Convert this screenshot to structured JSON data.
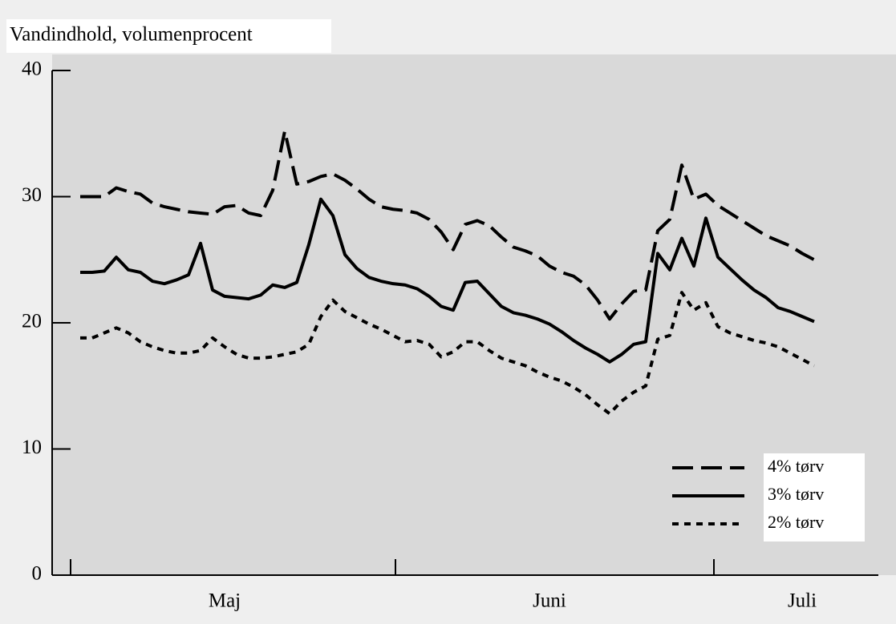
{
  "chart_data": {
    "type": "line",
    "title": "Vandindhold, volumenprocent",
    "categories": [
      null,
      null,
      null,
      null,
      null,
      null,
      null,
      null,
      null,
      null,
      null,
      null,
      "Maj",
      null,
      null,
      null,
      null,
      null,
      null,
      null,
      null,
      null,
      null,
      null,
      null,
      null,
      null,
      null,
      null,
      null,
      null,
      null,
      null,
      null,
      null,
      null,
      null,
      null,
      null,
      "Juni",
      null,
      null,
      null,
      null,
      null,
      null,
      null,
      null,
      null,
      null,
      null,
      null,
      null,
      null,
      null,
      null,
      null,
      null,
      null,
      null,
      "Juli",
      null
    ],
    "ylim": [
      0,
      40
    ],
    "yticks": [
      0,
      10,
      20,
      30,
      40
    ],
    "series": [
      {
        "name": "4% tørv",
        "color": "#000000",
        "line_style": "dashed",
        "values": [
          30,
          30,
          30,
          30.7,
          30.4,
          30.2,
          29.5,
          29.2,
          29,
          28.8,
          28.7,
          28.6,
          29.2,
          29.3,
          28.7,
          28.5,
          30.5,
          35.2,
          31,
          31.2,
          31.6,
          31.8,
          31.3,
          30.6,
          29.8,
          29.2,
          29,
          28.9,
          28.7,
          28.2,
          27.2,
          25.8,
          27.8,
          28.1,
          27.7,
          26.8,
          26,
          25.7,
          25.3,
          24.5,
          24,
          23.7,
          23,
          21.8,
          20.3,
          21.5,
          22.5,
          22.6,
          27.3,
          28.2,
          32.5,
          29.8,
          30.2,
          29.3,
          28.7,
          28.1,
          27.5,
          26.9,
          26.5,
          26.1,
          25.5,
          25
        ]
      },
      {
        "name": "3% tørv",
        "color": "#000000",
        "line_style": "solid",
        "values": [
          24,
          24,
          24.1,
          25.2,
          24.2,
          24,
          23.3,
          23.1,
          23.4,
          23.8,
          26.3,
          22.6,
          22.1,
          22,
          21.9,
          22.2,
          23,
          22.8,
          23.2,
          26.2,
          29.8,
          28.5,
          25.4,
          24.3,
          23.6,
          23.3,
          23.1,
          23,
          22.7,
          22.1,
          21.3,
          21,
          23.2,
          23.3,
          22.3,
          21.3,
          20.8,
          20.6,
          20.3,
          19.9,
          19.3,
          18.6,
          18,
          17.5,
          16.9,
          17.5,
          18.3,
          18.5,
          25.5,
          24.2,
          26.7,
          24.5,
          28.3,
          25.2,
          24.3,
          23.4,
          22.6,
          22,
          21.2,
          20.9,
          20.5,
          20.1
        ]
      },
      {
        "name": "2% tørv",
        "color": "#000000",
        "line_style": "dotted",
        "values": [
          18.8,
          18.8,
          19.2,
          19.6,
          19.2,
          18.5,
          18.1,
          17.8,
          17.6,
          17.6,
          17.8,
          18.8,
          18.1,
          17.5,
          17.2,
          17.2,
          17.3,
          17.5,
          17.7,
          18.3,
          20.5,
          21.8,
          20.9,
          20.4,
          19.9,
          19.5,
          19,
          18.5,
          18.6,
          18.3,
          17.3,
          17.7,
          18.5,
          18.5,
          17.8,
          17.2,
          16.9,
          16.6,
          16.1,
          15.7,
          15.4,
          14.9,
          14.3,
          13.5,
          12.8,
          13.8,
          14.5,
          15,
          18.7,
          19,
          22.4,
          21,
          21.6,
          19.7,
          19.2,
          18.9,
          18.6,
          18.4,
          18.1,
          17.6,
          17.1,
          16.6
        ]
      }
    ],
    "legend": "lower-right"
  }
}
